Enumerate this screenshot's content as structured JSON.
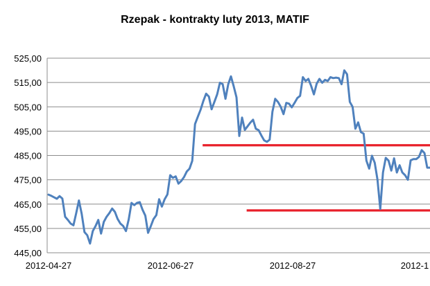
{
  "chart_data": {
    "type": "line",
    "title": "Rzepak - kontrakty luty 2013, MATIF",
    "xlabel": "",
    "ylabel": "",
    "ylim": [
      445,
      525
    ],
    "yticks": [
      "445,00",
      "455,00",
      "465,00",
      "475,00",
      "485,00",
      "495,00",
      "505,00",
      "515,00",
      "525,00"
    ],
    "xticks": [
      "2012-04-27",
      "2012-06-27",
      "2012-08-27",
      "2012-1"
    ],
    "grid": "horizontal",
    "legend": "none",
    "series": [
      {
        "color": "#4f81bd",
        "values": [
          468.9,
          468.4,
          467.8,
          467.2,
          468.3,
          467.3,
          459.8,
          458.5,
          457.0,
          456.3,
          461.3,
          466.5,
          461.0,
          453.5,
          452.2,
          448.8,
          453.9,
          456.0,
          458.5,
          452.9,
          457.7,
          459.8,
          461.3,
          463.2,
          461.8,
          458.9,
          457.0,
          456.0,
          453.9,
          458.7,
          465.5,
          464.6,
          465.5,
          465.8,
          462.7,
          460.3,
          453.2,
          456.0,
          458.9,
          460.5,
          467.0,
          464.0,
          467.0,
          469.0,
          476.9,
          475.8,
          476.4,
          473.4,
          474.5,
          476.1,
          478.4,
          479.6,
          482.8,
          497.9,
          500.9,
          503.8,
          507.4,
          510.4,
          509.2,
          504.0,
          507.0,
          510.1,
          514.9,
          514.3,
          508.3,
          514.3,
          517.5,
          513.4,
          508.9,
          493.0,
          500.6,
          495.5,
          497.0,
          498.5,
          499.7,
          496.0,
          495.4,
          493.2,
          491.2,
          490.6,
          491.5,
          503.0,
          508.3,
          507.0,
          505.0,
          502.0,
          506.6,
          506.3,
          504.8,
          506.6,
          508.6,
          509.5,
          517.2,
          515.6,
          516.5,
          513.6,
          510.1,
          514.5,
          516.5,
          514.9,
          516.1,
          515.6,
          517.2,
          516.8,
          517.0,
          516.8,
          514.3,
          520.0,
          518.4,
          507.0,
          505.0,
          496.0,
          498.6,
          494.6,
          494.0,
          482.9,
          479.6,
          484.9,
          482.0,
          475.0,
          463.0,
          478.0,
          484.0,
          482.9,
          478.8,
          483.8,
          478.0,
          481.0,
          478.0,
          476.9,
          475.0,
          483.0,
          483.5,
          483.5,
          484.4,
          487.2,
          486.0,
          480.0,
          480.0
        ]
      }
    ],
    "reference_lines": [
      {
        "y": 489.2,
        "from": "2012-07-13",
        "to": "end",
        "color": "#e8202a"
      },
      {
        "y": 462.4,
        "from": "2012-08-04",
        "to": "end",
        "color": "#e8202a"
      }
    ]
  }
}
